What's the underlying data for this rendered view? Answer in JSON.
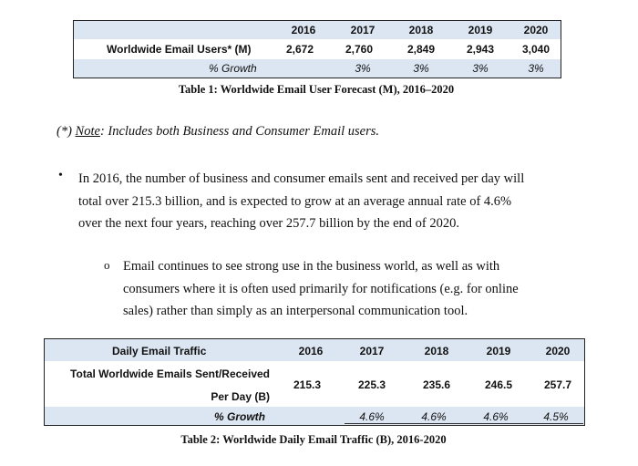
{
  "table1": {
    "years": [
      "2016",
      "2017",
      "2018",
      "2019",
      "2020"
    ],
    "row_users_label": "Worldwide Email Users* (M)",
    "users": [
      "2,672",
      "2,760",
      "2,849",
      "2,943",
      "3,040"
    ],
    "row_growth_label": "% Growth",
    "growth": [
      "",
      "3%",
      "3%",
      "3%",
      "3%"
    ],
    "caption": "Table 1: Worldwide Email User Forecast (M), 2016–2020"
  },
  "note": {
    "prefix": "(*) ",
    "label": "Note",
    "text": ": Includes both Business and Consumer Email users."
  },
  "bullet1": {
    "line1": "In 2016, the number of business and consumer emails sent and received per day will",
    "line2": "total over 215.3 billion, and is expected to grow at an average annual rate of 4.6%",
    "line3": "over the next four years, reaching over 257.7 billion by the end of 2020."
  },
  "bullet2": {
    "line1": "Email continues to see strong use in the business world, as well as with",
    "line2": "consumers where it is often used primarily for notifications (e.g. for online",
    "line3": "sales) rather than simply as an interpersonal communication tool."
  },
  "table2": {
    "header_label": "Daily Email Traffic",
    "years": [
      "2016",
      "2017",
      "2018",
      "2019",
      "2020"
    ],
    "row_label_line1": "Total Worldwide Emails Sent/Received",
    "row_label_line2": "Per Day (B)",
    "values": [
      "215.3",
      "225.3",
      "235.6",
      "246.5",
      "257.7"
    ],
    "row_growth_label": "% Growth",
    "growth": [
      "",
      "4.6%",
      "4.6%",
      "4.6%",
      "4.5%"
    ],
    "caption": "Table 2: Worldwide Daily Email Traffic (B), 2016-2020"
  },
  "colors": {
    "band": "#dce6f2"
  }
}
